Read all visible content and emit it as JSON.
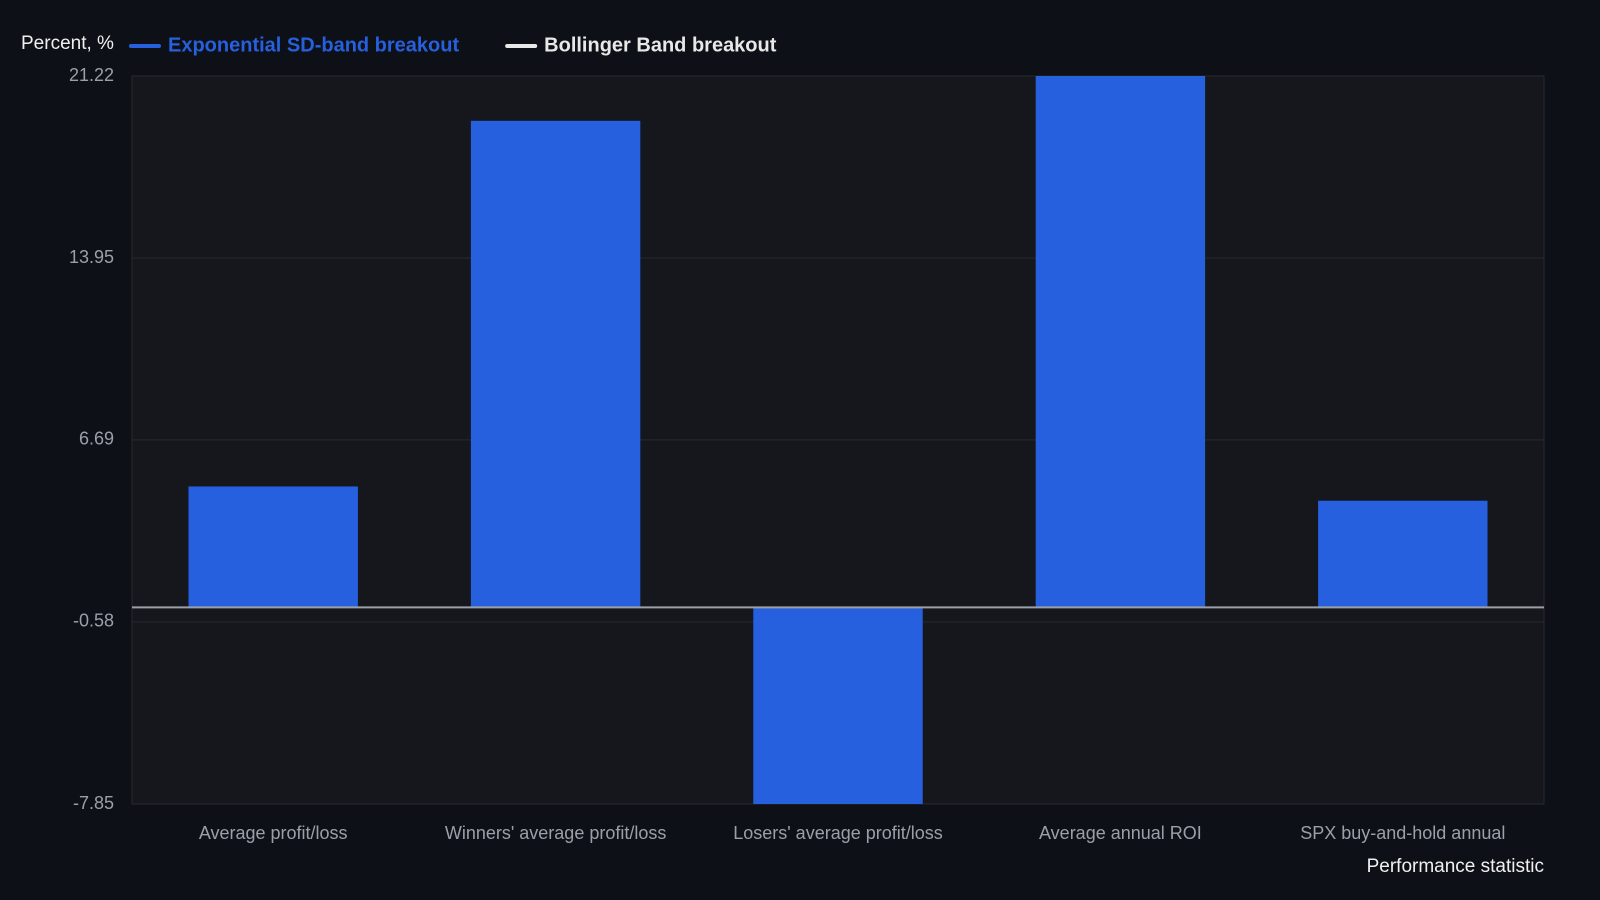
{
  "chart_data": {
    "type": "bar",
    "y_label": "Percent, %",
    "x_label": "Performance statistic",
    "categories": [
      "Average profit/loss",
      "Winners' average profit/loss",
      "Losers' average profit/loss",
      "Average annual ROI",
      "SPX buy-and-hold annual"
    ],
    "series": [
      {
        "name": "Exponential SD-band breakout",
        "color": "#2660de",
        "values": [
          4.83,
          19.43,
          -7.85,
          21.22,
          4.26
        ]
      },
      {
        "name": "Bollinger Band breakout",
        "color": "#e8e8e8",
        "values": [
          null,
          null,
          null,
          null,
          null
        ]
      }
    ],
    "ylim": [
      -7.85,
      21.22
    ],
    "yticks": [
      -7.85,
      -0.58,
      6.69,
      13.95,
      21.22
    ],
    "grid": true
  }
}
